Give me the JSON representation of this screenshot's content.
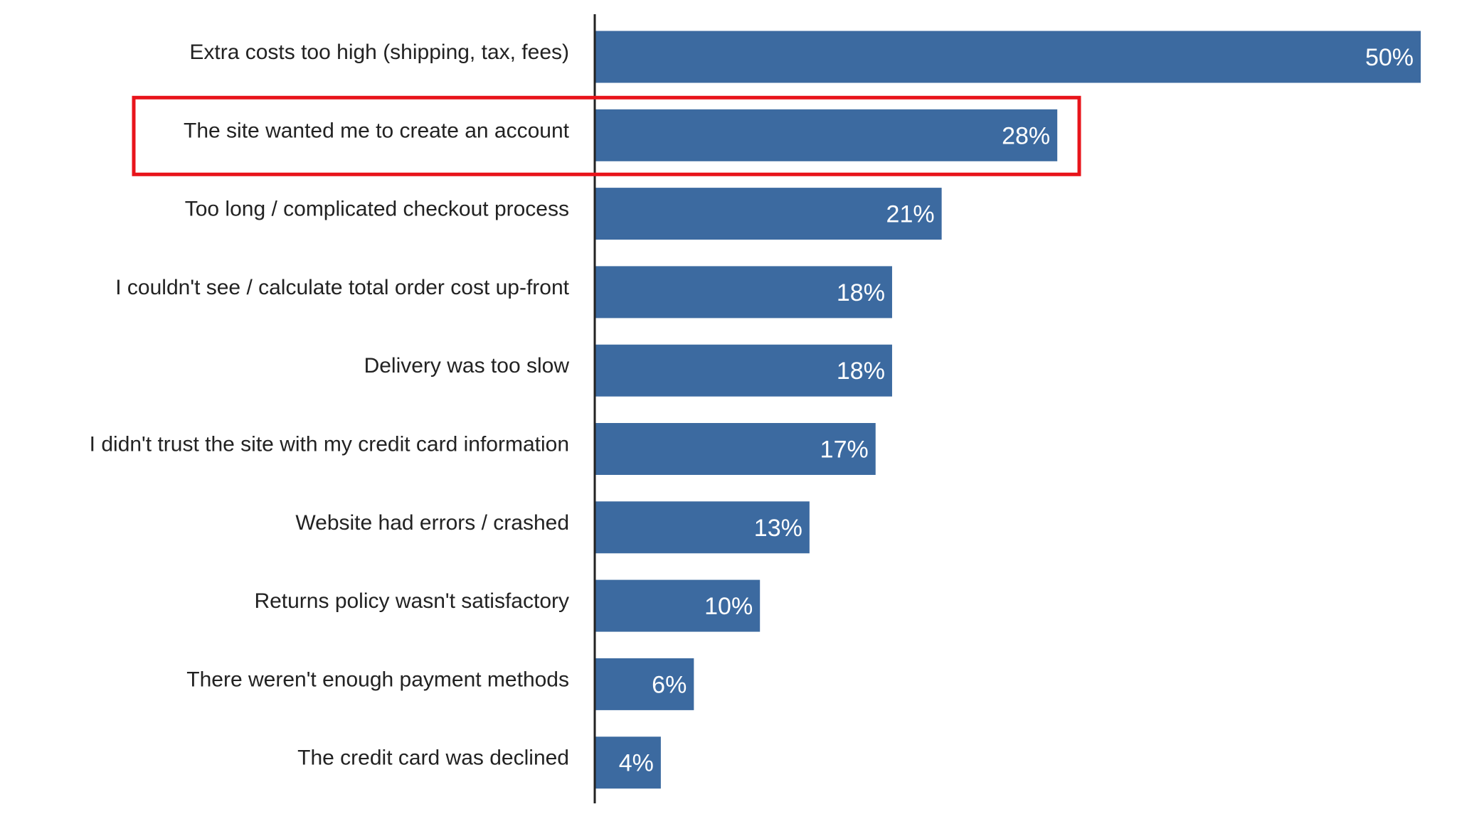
{
  "chart_data": {
    "type": "bar",
    "orientation": "horizontal",
    "categories": [
      "Extra costs too high (shipping, tax, fees)",
      "The site wanted me to create an account",
      "Too long / complicated checkout process",
      "I couldn't see / calculate total order cost up-front",
      "Delivery was too slow",
      "I didn't trust the site with my credit card information",
      "Website had errors / crashed",
      "Returns policy wasn't satisfactory",
      "There weren't enough payment methods",
      "The credit card was declined"
    ],
    "values": [
      50,
      28,
      21,
      18,
      18,
      17,
      13,
      10,
      6,
      4
    ],
    "value_labels": [
      "50%",
      "28%",
      "21%",
      "18%",
      "18%",
      "17%",
      "13%",
      "10%",
      "6%",
      "4%"
    ],
    "unit": "%",
    "xlim": [
      0,
      50
    ],
    "grid": false,
    "legend": "none",
    "highlighted_category_index": 1,
    "colors": {
      "bar": "#3c6aa0",
      "highlight_outline": "#e8141b",
      "axis": "#222222",
      "label_text": "#222222",
      "value_text": "#ffffff"
    }
  }
}
